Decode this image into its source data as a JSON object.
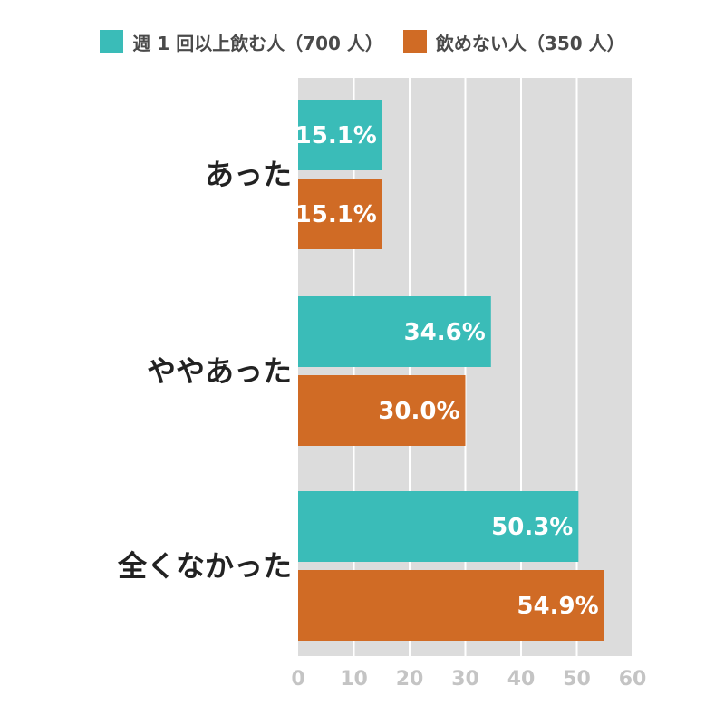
{
  "chart_data": {
    "type": "bar",
    "orientation": "horizontal",
    "categories": [
      "あった",
      "ややあった",
      "全くなかった"
    ],
    "series": [
      {
        "name": "週 1 回以上飲む人（700 人）",
        "color": "#3abcb8",
        "values": [
          15.1,
          34.6,
          50.3
        ],
        "labels": [
          "15.1%",
          "34.6%",
          "50.3%"
        ]
      },
      {
        "name": "飲めない人（350 人）",
        "color": "#d06b25",
        "values": [
          15.1,
          30.0,
          54.9
        ],
        "labels": [
          "15.1%",
          "30.0%",
          "54.9%"
        ]
      }
    ],
    "xlim": [
      0,
      60
    ],
    "xticks": [
      0,
      10,
      20,
      30,
      40,
      50,
      60
    ],
    "xtick_labels": [
      "0",
      "10",
      "20",
      "30",
      "40",
      "50",
      "60"
    ],
    "grid": true,
    "legend_position": "top-center",
    "plot_background": "#dcdcdc"
  }
}
